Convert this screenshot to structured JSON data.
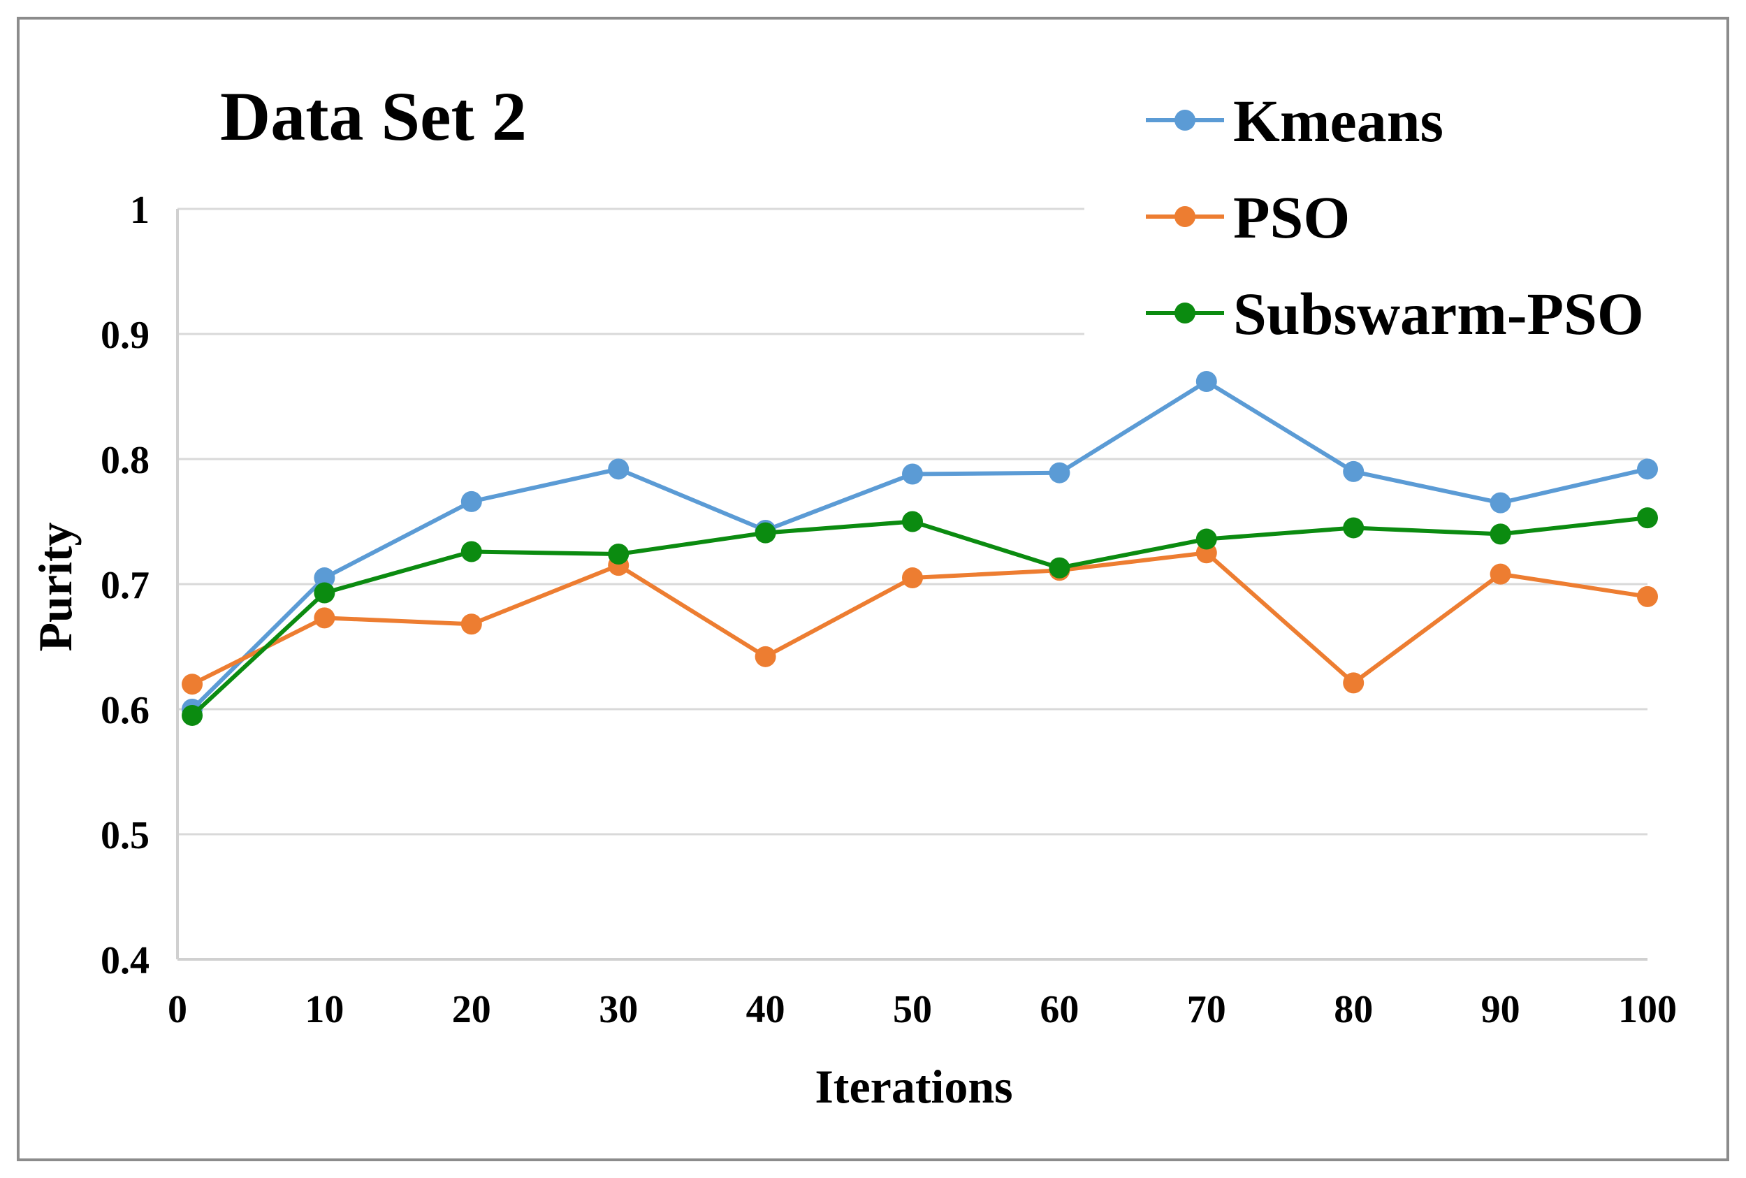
{
  "chart_data": {
    "type": "line",
    "title": "Data Set 2",
    "xlabel": "Iterations",
    "ylabel": "Purity",
    "x": [
      1,
      10,
      20,
      30,
      40,
      50,
      60,
      70,
      80,
      90,
      100
    ],
    "x_tick_labels": [
      "0",
      "10",
      "20",
      "30",
      "40",
      "50",
      "60",
      "70",
      "80",
      "90",
      "100"
    ],
    "x_tick_values": [
      0,
      10,
      20,
      30,
      40,
      50,
      60,
      70,
      80,
      90,
      100
    ],
    "xlim": [
      0,
      100
    ],
    "ylim": [
      0.4,
      1.0
    ],
    "y_tick_values": [
      0.4,
      0.5,
      0.6,
      0.7,
      0.8,
      0.9,
      1.0
    ],
    "y_tick_labels": [
      "0.4",
      "0.5",
      "0.6",
      "0.7",
      "0.8",
      "0.9",
      "1"
    ],
    "grid": true,
    "legend_position": "top-right",
    "series": [
      {
        "name": "Kmeans",
        "color": "#5b9bd5",
        "values": [
          0.6,
          0.705,
          0.766,
          0.792,
          0.743,
          0.788,
          0.789,
          0.862,
          0.79,
          0.765,
          0.792
        ]
      },
      {
        "name": "PSO",
        "color": "#ed7d31",
        "values": [
          0.62,
          0.673,
          0.668,
          0.715,
          0.642,
          0.705,
          0.711,
          0.725,
          0.621,
          0.708,
          0.69
        ]
      },
      {
        "name": "Subswarm-PSO",
        "color": "#0b8b10",
        "values": [
          0.595,
          0.693,
          0.726,
          0.724,
          0.741,
          0.75,
          0.713,
          0.736,
          0.745,
          0.74,
          0.753
        ]
      }
    ]
  }
}
